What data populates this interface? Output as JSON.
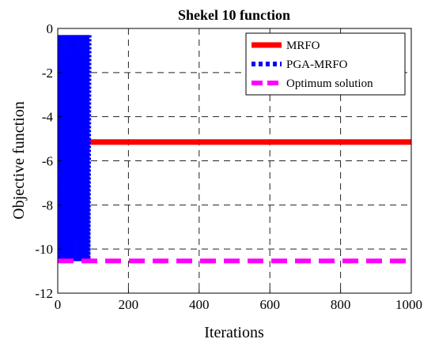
{
  "chart_data": {
    "type": "line",
    "title": "Shekel 10 function",
    "xlabel": "Iterations",
    "ylabel": "Objective function",
    "xlim": [
      0,
      1000
    ],
    "ylim": [
      -12,
      0
    ],
    "xticks": [
      0,
      200,
      400,
      600,
      800,
      1000
    ],
    "yticks": [
      0,
      -2,
      -4,
      -6,
      -8,
      -10,
      -12
    ],
    "xtick_labels": [
      "0",
      "200",
      "400",
      "600",
      "800",
      "1000"
    ],
    "ytick_labels": [
      "0",
      "-2",
      "-4",
      "-6",
      "-8",
      "-10",
      "-12"
    ],
    "grid": true,
    "legend_position": "top-right",
    "series": [
      {
        "name": "MRFO",
        "color": "#ff0000",
        "style": "solid",
        "x": [
          0,
          3,
          5,
          8,
          10,
          1000
        ],
        "y": [
          -4.1,
          -4.4,
          -5.1,
          -5.15,
          -5.15,
          -5.15
        ]
      },
      {
        "name": "PGA-MRFO",
        "color": "#0000ff",
        "style": "dotted",
        "oscillation": {
          "x_start": 0,
          "x_end": 90,
          "y_high": -0.3,
          "y_low": -10.55
        },
        "x": [
          0,
          90
        ],
        "y": [
          -0.3,
          -10.55
        ]
      },
      {
        "name": "Optimum solution",
        "color": "#ff00ff",
        "style": "dashed",
        "x": [
          0,
          1000
        ],
        "y": [
          -10.54,
          -10.54
        ]
      }
    ]
  }
}
